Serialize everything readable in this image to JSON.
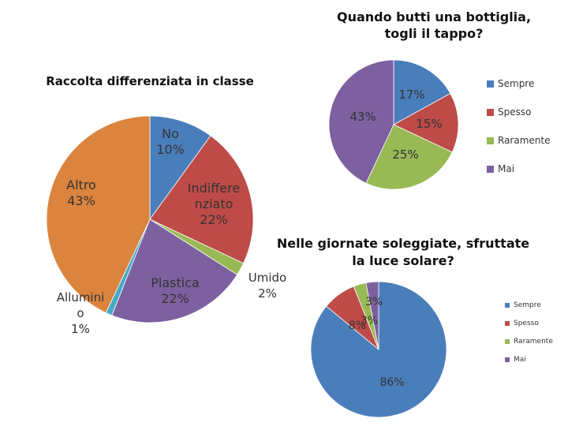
{
  "chart_data": [
    {
      "type": "pie",
      "title": "Raccolta differenziata in classe",
      "categories": [
        "No",
        "Indifferenziato",
        "Umido",
        "Plastica",
        "Alluminio",
        "Altro"
      ],
      "values": [
        10,
        22,
        2,
        22,
        1,
        43
      ],
      "labels": [
        "No\n10%",
        "Indiffere\nnziato\n22%",
        "Umido\n2%",
        "Plastica\n22%",
        "Allumini\no\n1%",
        "Altro\n43%"
      ],
      "colors": [
        "#4a7ebb",
        "#be4b48",
        "#98b954",
        "#7d60a0",
        "#46aac5",
        "#db843d"
      ]
    },
    {
      "type": "pie",
      "title": "Quando butti una bottiglia,\ntogli il tappo?",
      "categories": [
        "Sempre",
        "Spesso",
        "Raramente",
        "Mai"
      ],
      "values": [
        17,
        15,
        25,
        43
      ],
      "labels": [
        "17%",
        "15%",
        "25%",
        "43%"
      ],
      "colors": [
        "#4a7ebb",
        "#be4b48",
        "#98b954",
        "#7d60a0"
      ],
      "legend": "right"
    },
    {
      "type": "pie",
      "title": "Nelle giornate soleggiate, sfruttate\nla luce solare?",
      "categories": [
        "Sempre",
        "Spesso",
        "Raramente",
        "Mai"
      ],
      "values": [
        86,
        8,
        3,
        3
      ],
      "labels": [
        "86%",
        "8%",
        "3%",
        "3%"
      ],
      "colors": [
        "#4a7ebb",
        "#be4b48",
        "#98b954",
        "#7d60a0"
      ],
      "legend": "right"
    }
  ]
}
